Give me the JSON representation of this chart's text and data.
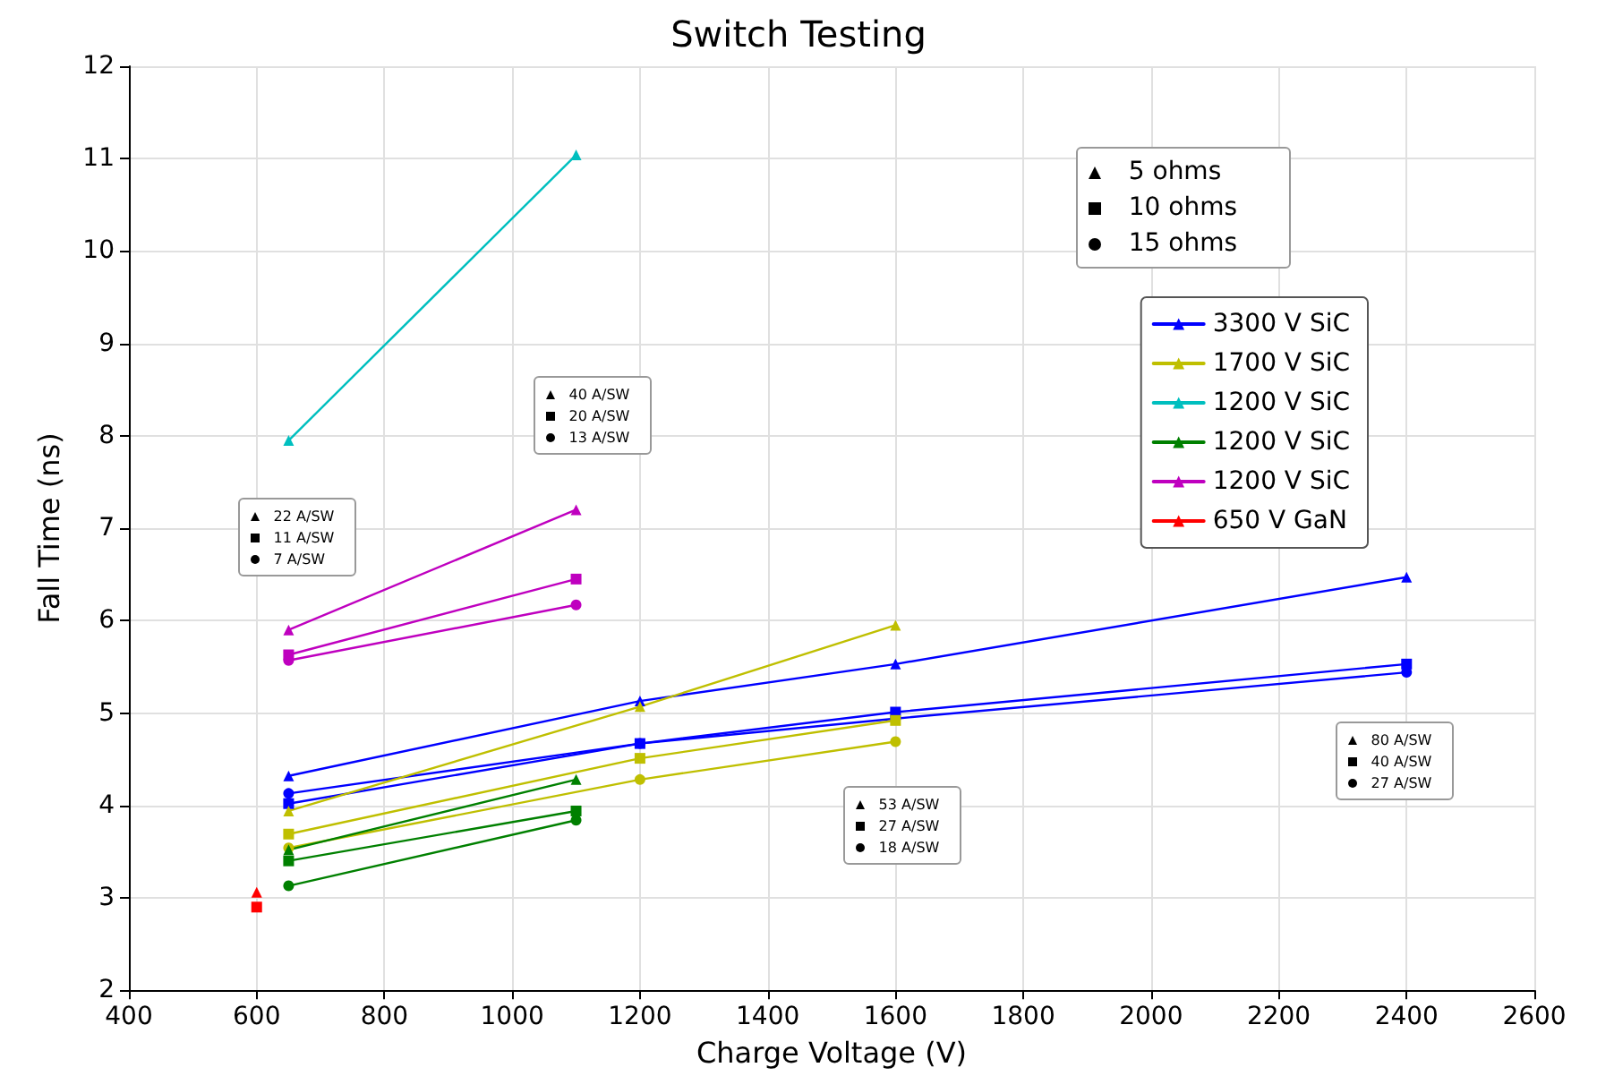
{
  "chart_data": {
    "type": "line",
    "title": "Switch Testing",
    "xlabel": "Charge Voltage (V)",
    "ylabel": "Fall Time (ns)",
    "xlim": [
      400,
      2600
    ],
    "xticks": [
      400,
      600,
      800,
      1000,
      1200,
      1400,
      1600,
      1800,
      2000,
      2200,
      2400,
      2600
    ],
    "ylim": [
      2,
      12
    ],
    "yticks": [
      2,
      3,
      4,
      5,
      6,
      7,
      8,
      9,
      10,
      11,
      12
    ],
    "grid": true,
    "legend": "top right",
    "line_style": "solid",
    "series": [
      {
        "name": "3300 V SiC",
        "color": "#0000ff",
        "marker": "triangle",
        "x": [
          650,
          1200,
          1600,
          2400
        ],
        "values": [
          4.32,
          5.13,
          5.53,
          6.47
        ]
      },
      {
        "color": "#0000ff",
        "marker": "square",
        "x": [
          650,
          1200,
          1600,
          2400
        ],
        "values": [
          4.02,
          4.67,
          5.01,
          5.53
        ]
      },
      {
        "color": "#0000ff",
        "marker": "circle",
        "x": [
          650,
          1200,
          1600,
          2400
        ],
        "values": [
          4.13,
          4.67,
          4.94,
          5.44
        ]
      },
      {
        "name": "1700 V SiC",
        "color": "#bfbf00",
        "marker": "triangle",
        "x": [
          650,
          1200,
          1600
        ],
        "values": [
          3.94,
          5.07,
          5.95
        ]
      },
      {
        "color": "#bfbf00",
        "marker": "square",
        "x": [
          650,
          1200,
          1600
        ],
        "values": [
          3.69,
          4.51,
          4.92
        ]
      },
      {
        "color": "#bfbf00",
        "marker": "circle",
        "x": [
          650,
          1200,
          1600
        ],
        "values": [
          3.54,
          4.28,
          4.69
        ]
      },
      {
        "name": "1200 V SiC",
        "color": "#00bfbf",
        "marker": "triangle",
        "x": [
          650,
          1100
        ],
        "values": [
          7.95,
          11.04
        ]
      },
      {
        "name": "1200 V SiC",
        "color": "#008000",
        "marker": "triangle",
        "x": [
          650,
          1100
        ],
        "values": [
          3.52,
          4.28
        ]
      },
      {
        "color": "#008000",
        "marker": "square",
        "x": [
          650,
          1100
        ],
        "values": [
          3.4,
          3.94
        ]
      },
      {
        "color": "#008000",
        "marker": "circle",
        "x": [
          650,
          1100
        ],
        "values": [
          3.13,
          3.84
        ]
      },
      {
        "name": "1200 V SiC",
        "color": "#bf00bf",
        "marker": "triangle",
        "x": [
          650,
          1100
        ],
        "values": [
          5.9,
          7.2
        ]
      },
      {
        "color": "#bf00bf",
        "marker": "square",
        "x": [
          650,
          1100
        ],
        "values": [
          5.63,
          6.45
        ]
      },
      {
        "color": "#bf00bf",
        "marker": "circle",
        "x": [
          650,
          1100
        ],
        "values": [
          5.57,
          6.17
        ]
      },
      {
        "name": "650 V GaN",
        "color": "#ff0000",
        "marker": "triangle",
        "x": [
          600
        ],
        "values": [
          3.06
        ]
      },
      {
        "color": "#ff0000",
        "marker": "square",
        "x": [
          600
        ],
        "values": [
          2.9
        ]
      }
    ],
    "annotations": [
      "5 ohms",
      "10 ohms",
      "15 ohms",
      "22 A/SW",
      "11 A/SW",
      "7 A/SW",
      "40 A/SW",
      "20 A/SW",
      "13 A/SW",
      "53 A/SW",
      "27 A/SW",
      "18 A/SW",
      "80 A/SW",
      "40 A/SW",
      "27 A/SW"
    ]
  }
}
